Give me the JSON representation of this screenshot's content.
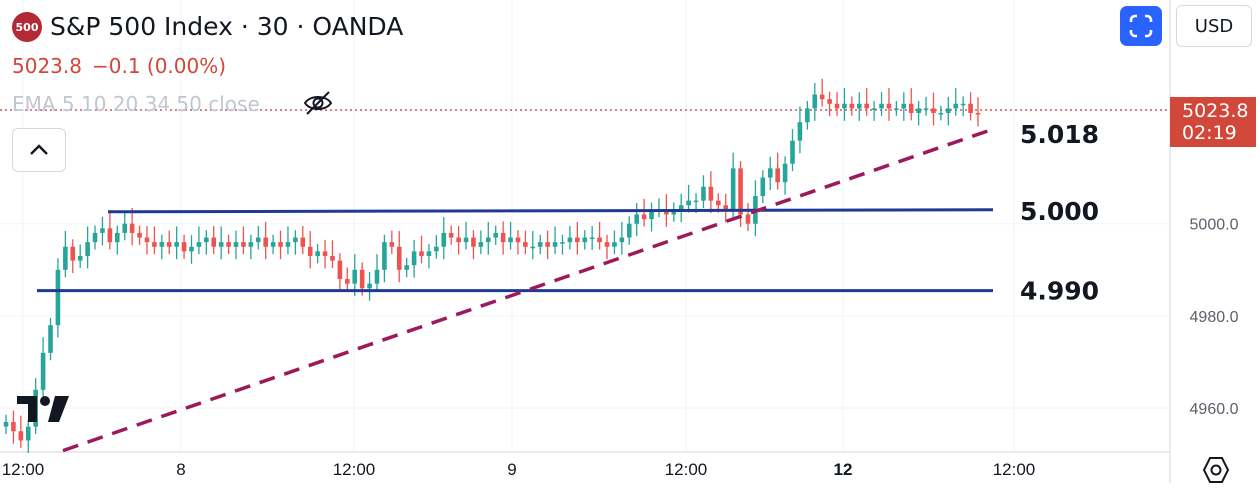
{
  "header": {
    "symbol_badge": "500",
    "title": "S&P 500 Index · 30 · OANDA",
    "last_price": "5023.8",
    "change": "−0.1 (0.00%)",
    "indicator": "EMA 5 10 20 34 50 close"
  },
  "controls": {
    "currency": "USD",
    "price_tag": "5023.8",
    "countdown": "02:19"
  },
  "icons": {
    "badge": "symbol-logo-icon",
    "hide": "eye-crossed-icon",
    "collapse": "chevron-up-icon",
    "fullscreen": "fullscreen-icon",
    "brand": "tradingview-logo-icon",
    "settings": "gear-icon"
  },
  "colors": {
    "up": "#26a69a",
    "down": "#ef5350",
    "support_line": "#1f3a93",
    "trend_line": "#9c1a5c",
    "accent": "#2962ff",
    "price_tag": "#d1473a"
  },
  "chart_data": {
    "type": "candlestick",
    "y_ticks": [
      5000.0,
      4980.0,
      4960.0
    ],
    "ylim": [
      4950.5,
      5048.5
    ],
    "x_ticks": [
      "12:00",
      "8",
      "12:00",
      "9",
      "12:00",
      "12",
      "12:00"
    ],
    "current_price": 5023.8,
    "horizontal_lines": [
      {
        "label": "5.000",
        "value": 5002.8
      },
      {
        "label": "4.990",
        "value": 4985.5
      }
    ],
    "trend_line": {
      "label": "5.018",
      "style": "dashed",
      "value_start": 4950.8,
      "value_end": 5020.5
    },
    "candles_close": [
      4957,
      4955,
      4953,
      4956,
      4964,
      4972,
      4978,
      4990,
      4995,
      4992,
      4993,
      4996,
      4998,
      4999,
      4996,
      4998,
      5000,
      4998,
      4997,
      4996,
      4995,
      4996,
      4995,
      4996,
      4994,
      4995,
      4996,
      4997,
      4995,
      4996,
      4995,
      4996,
      4995,
      4996,
      4997,
      4995,
      4996,
      4995,
      4996,
      4997,
      4995,
      4993,
      4994,
      4993,
      4992,
      4988,
      4987,
      4990,
      4986,
      4987,
      4990,
      4996,
      4995,
      4990,
      4991,
      4994,
      4993,
      4994,
      4995,
      4998,
      4997,
      4996,
      4997,
      4995,
      4996,
      4997,
      4998,
      4996,
      4997,
      4996,
      4995,
      4995,
      4996,
      4995,
      4996,
      4996,
      4997,
      4996,
      4997,
      4997,
      4996,
      4995,
      4996,
      4997,
      5000,
      5002,
      5001,
      5003,
      5003,
      5002,
      5003,
      5004,
      5005,
      5005,
      5008,
      5005,
      5004,
      5003,
      5012,
      5002,
      5000,
      5006,
      5010,
      5012,
      5009,
      5013,
      5018,
      5022,
      5025,
      5028,
      5027,
      5026,
      5025,
      5026,
      5025,
      5026,
      5025,
      5025,
      5026,
      5025,
      5025,
      5026,
      5024,
      5025,
      5025,
      5024,
      5024,
      5025,
      5026,
      5026,
      5024,
      5023.8
    ]
  }
}
